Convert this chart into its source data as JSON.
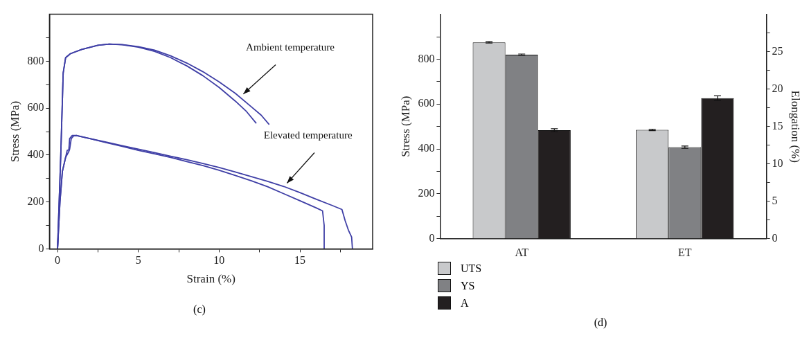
{
  "chart_data": [
    {
      "type": "line",
      "xlabel": "Strain (%)",
      "ylabel": "Stress (MPa)",
      "xlim": [
        -0.5,
        19.5
      ],
      "xticks": [
        0,
        {
          "value": 2.5,
          "label": null
        },
        5,
        {
          "value": 7.5,
          "label": null
        },
        10,
        {
          "value": 12.5,
          "label": null
        },
        15,
        {
          "value": 17.5,
          "label": null
        }
      ],
      "ylim": [
        0,
        1000
      ],
      "yticks": [
        0,
        {
          "value": 100,
          "label": null
        },
        200,
        {
          "value": 300,
          "label": null
        },
        400,
        {
          "value": 500,
          "label": null
        },
        600,
        {
          "value": 700,
          "label": null
        },
        800,
        {
          "value": 900,
          "label": null
        }
      ],
      "grid": false,
      "legend": false,
      "marker": "none",
      "line_style": "solid",
      "annotations": [
        "Ambient temperature",
        "Elevated temperature",
        "(c)"
      ],
      "series": [
        {
          "color": "#3f3fa6",
          "x": [
            0,
            0.2,
            0.35,
            0.5,
            0.8,
            1.5,
            2.5,
            3.2,
            4,
            5,
            6,
            7,
            8,
            9,
            10,
            11,
            11.7,
            12.3
          ],
          "values": [
            0,
            400,
            750,
            815,
            832,
            850,
            868,
            873,
            870,
            860,
            842,
            815,
            780,
            738,
            688,
            630,
            585,
            535
          ]
        },
        {
          "color": "#3f3fa6",
          "x": [
            0,
            0.2,
            0.35,
            0.5,
            0.8,
            1.5,
            2.5,
            3.2,
            4,
            5,
            6,
            7,
            8,
            9,
            10,
            11,
            12,
            12.6,
            13.1
          ],
          "values": [
            0,
            400,
            750,
            815,
            832,
            850,
            868,
            873,
            871,
            862,
            847,
            823,
            792,
            755,
            712,
            663,
            605,
            570,
            530
          ]
        },
        {
          "color": "#3f3fa6",
          "x": [
            0,
            0.15,
            0.3,
            0.5,
            0.7,
            0.75,
            0.85,
            1,
            1.2,
            2,
            3,
            4,
            5,
            6,
            7,
            8,
            9,
            10,
            11,
            12,
            13,
            14,
            15,
            16,
            16.4,
            16.5,
            16.5
          ],
          "values": [
            0,
            200,
            330,
            390,
            415,
            425,
            470,
            482,
            483,
            470,
            453,
            437,
            420,
            405,
            390,
            372,
            355,
            335,
            313,
            290,
            265,
            235,
            205,
            175,
            162,
            100,
            0
          ]
        },
        {
          "color": "#3f3fa6",
          "x": [
            0,
            0.15,
            0.3,
            0.5,
            0.6,
            0.7,
            0.75,
            0.9,
            1.2,
            2,
            3,
            4,
            5,
            6,
            7,
            8,
            9,
            10,
            11,
            12,
            13,
            14,
            15,
            16,
            17,
            17.6,
            17.8,
            18,
            18.2,
            18.25
          ],
          "values": [
            0,
            200,
            330,
            390,
            420,
            422,
            470,
            483,
            483,
            470,
            455,
            440,
            425,
            410,
            395,
            380,
            364,
            347,
            328,
            308,
            288,
            266,
            240,
            212,
            185,
            168,
            120,
            80,
            50,
            0
          ]
        }
      ]
    },
    {
      "type": "bar",
      "categories": [
        "AT",
        "ET"
      ],
      "ylabel": "Stress (MPa)",
      "y2label": "Elongation (%)",
      "ylim": [
        0,
        1000
      ],
      "yticks": [
        0,
        {
          "value": 100,
          "label": null
        },
        200,
        {
          "value": 300,
          "label": null
        },
        400,
        {
          "value": 500,
          "label": null
        },
        600,
        {
          "value": 700,
          "label": null
        },
        800,
        {
          "value": 900,
          "label": null
        }
      ],
      "y2lim": [
        0,
        30
      ],
      "y2ticks": [
        0,
        {
          "value": 2.5,
          "label": null
        },
        5,
        {
          "value": 7.5,
          "label": null
        },
        10,
        {
          "value": 12.5,
          "label": null
        },
        15,
        {
          "value": 17.5,
          "label": null
        },
        20,
        {
          "value": 22.5,
          "label": null
        },
        25,
        {
          "value": 27.5,
          "label": null
        }
      ],
      "grid": false,
      "legend": "bottom left",
      "annotations": [
        "(d)"
      ],
      "series": [
        {
          "name": "UTS",
          "color": "#c8c9cb",
          "values": [
            875,
            485
          ],
          "errors": [
            3,
            3
          ]
        },
        {
          "name": "YS",
          "color": "#808184",
          "values": [
            820,
            408
          ],
          "errors": [
            3,
            5
          ]
        },
        {
          "name": "A",
          "color": "#231f20",
          "values": [
            14.5,
            18.8
          ],
          "errors": [
            0.2,
            0.3
          ],
          "axis": "y2"
        }
      ]
    }
  ]
}
